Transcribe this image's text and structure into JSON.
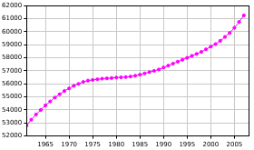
{
  "chart_data": {
    "type": "line",
    "x": [
      1961,
      1962,
      1963,
      1964,
      1965,
      1966,
      1967,
      1968,
      1969,
      1970,
      1971,
      1972,
      1973,
      1974,
      1975,
      1976,
      1977,
      1978,
      1979,
      1980,
      1981,
      1982,
      1983,
      1984,
      1985,
      1986,
      1987,
      1988,
      1989,
      1990,
      1991,
      1992,
      1993,
      1994,
      1995,
      1996,
      1997,
      1998,
      1999,
      2000,
      2001,
      2002,
      2003,
      2004,
      2005,
      2006,
      2007
    ],
    "values": [
      52800,
      53250,
      53650,
      54000,
      54350,
      54650,
      54950,
      55200,
      55450,
      55650,
      55850,
      56000,
      56150,
      56250,
      56300,
      56350,
      56400,
      56420,
      56450,
      56480,
      56500,
      56520,
      56560,
      56620,
      56700,
      56800,
      56900,
      57000,
      57100,
      57250,
      57400,
      57550,
      57700,
      57850,
      58000,
      58150,
      58300,
      58450,
      58650,
      58850,
      59050,
      59300,
      59600,
      59900,
      60300,
      60750,
      61250
    ],
    "color": "#ff00ff",
    "marker": "circle",
    "xlim": [
      1961,
      2008
    ],
    "xticks": [
      1965,
      1970,
      1975,
      1980,
      1985,
      1990,
      1995,
      2000,
      2005
    ],
    "ylim": [
      52000,
      62000
    ],
    "yticks": [
      52000,
      53000,
      54000,
      55000,
      56000,
      57000,
      58000,
      59000,
      60000,
      61000,
      62000
    ],
    "grid": true
  }
}
